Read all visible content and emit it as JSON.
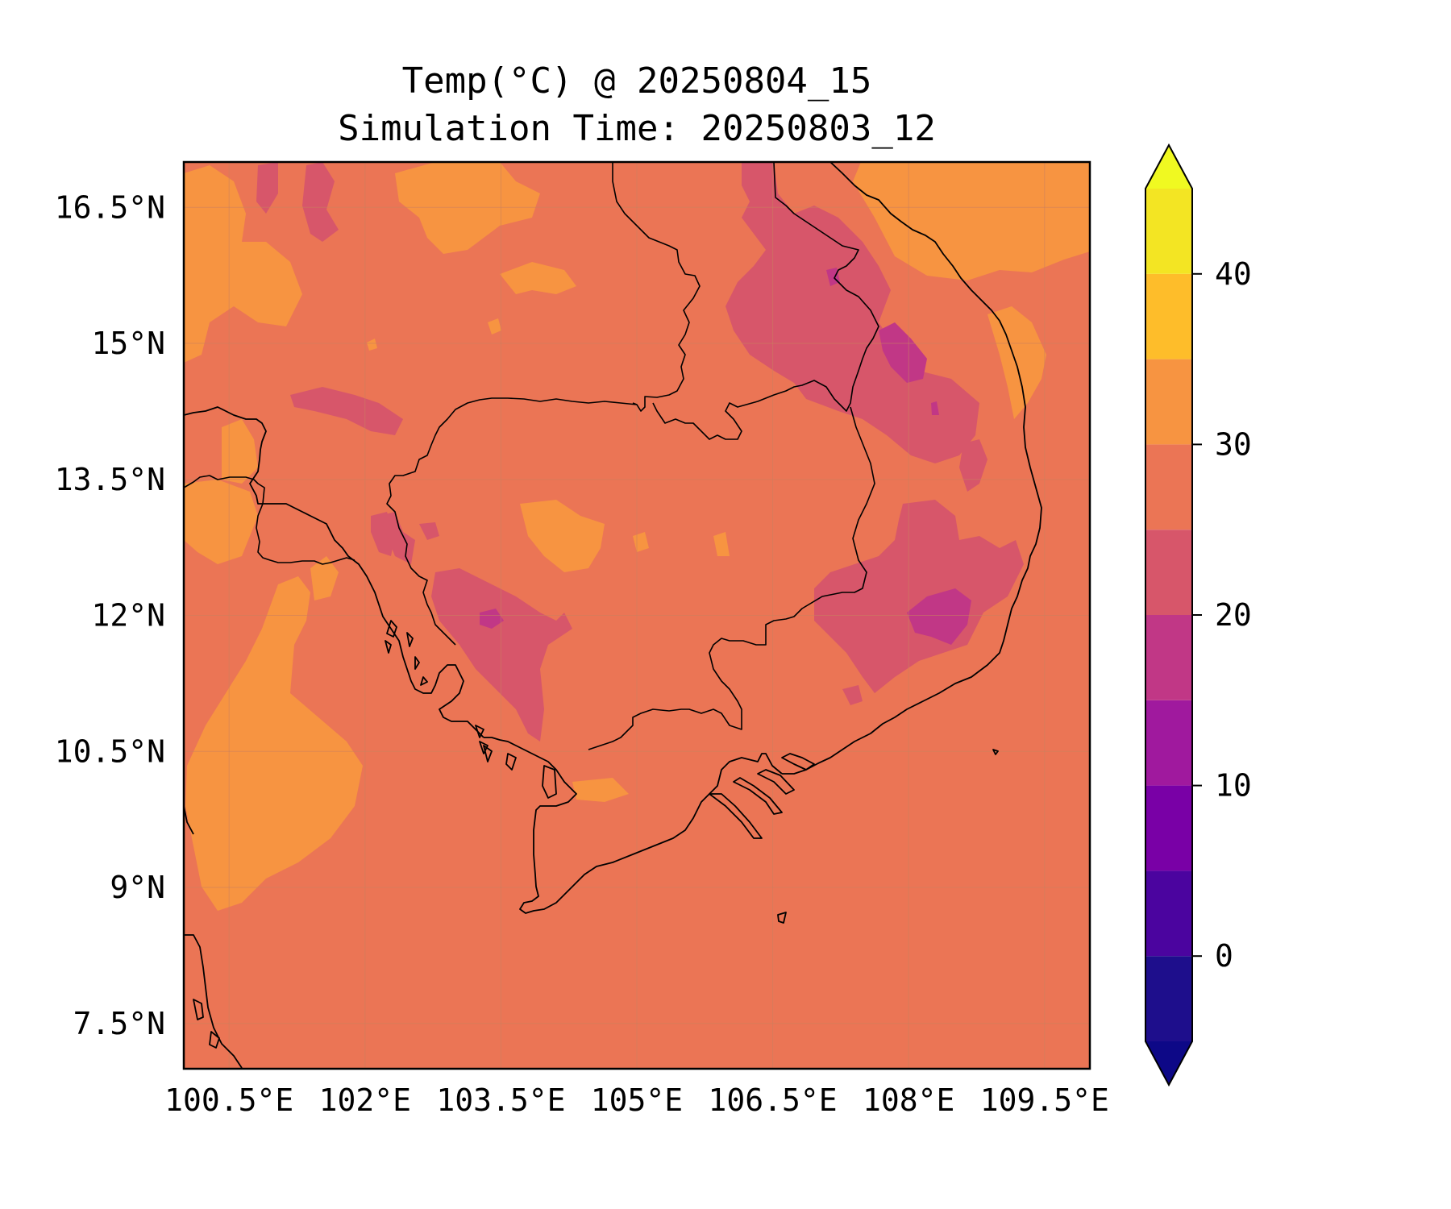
{
  "title_line1": "Temp(°C) @ 20250804_15",
  "title_line2": "Simulation Time: 20250803_12",
  "map": {
    "lon_range": [
      100.0,
      110.0
    ],
    "lat_range": [
      7.0,
      17.0
    ],
    "x_ticks": [
      100.5,
      102,
      103.5,
      105,
      106.5,
      108,
      109.5
    ],
    "x_tick_labels": [
      "100.5°E",
      "102°E",
      "103.5°E",
      "105°E",
      "106.5°E",
      "108°E",
      "109.5°E"
    ],
    "y_ticks": [
      16.5,
      15,
      13.5,
      12,
      10.5,
      9,
      7.5
    ],
    "y_tick_labels": [
      "16.5°N",
      "15°N",
      "13.5°N",
      "12°N",
      "10.5°N",
      "9°N",
      "7.5°N"
    ],
    "grid": true
  },
  "field_levels": {
    "background": "25-30",
    "warm_patches": "30-35",
    "cool_patches": "20-25",
    "coldest_patches": "15-20"
  },
  "colorbar": {
    "levels": [
      -5,
      0,
      5,
      10,
      15,
      20,
      25,
      30,
      35,
      40,
      45
    ],
    "colors": [
      "#1e0e8c",
      "#4b049f",
      "#7900a6",
      "#a0199e",
      "#c13786",
      "#d7566a",
      "#eb7555",
      "#f79441",
      "#febd2a",
      "#f3e523"
    ],
    "extend_low_color": "#0d0887",
    "extend_high_color": "#f0f921",
    "tick_values": [
      0,
      10,
      20,
      30,
      40
    ],
    "tick_labels": [
      "0",
      "10",
      "20",
      "30",
      "40"
    ]
  }
}
